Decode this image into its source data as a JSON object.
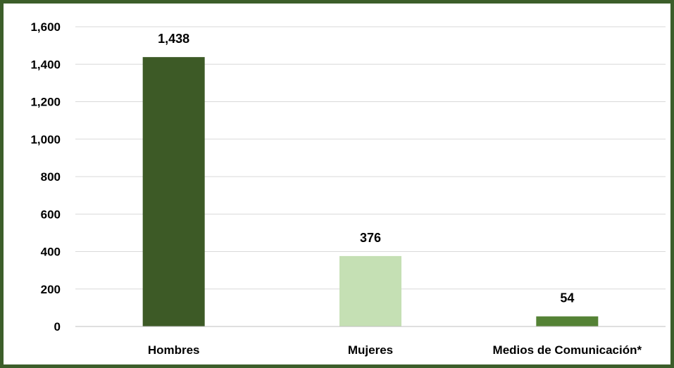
{
  "chart_data": {
    "type": "bar",
    "title": "",
    "xlabel": "",
    "ylabel": "",
    "categories": [
      "Hombres",
      "Mujeres",
      "Medios de Comunicación*"
    ],
    "values": [
      1438,
      376,
      54
    ],
    "data_labels": [
      "1,438",
      "376",
      "54"
    ],
    "bar_colors": [
      "#3d5a26",
      "#c5e0b4",
      "#548235"
    ],
    "ylim": [
      0,
      1600
    ],
    "yticks": [
      0,
      200,
      400,
      600,
      800,
      1000,
      1200,
      1400,
      1600
    ],
    "ytick_labels": [
      "0",
      "200",
      "400",
      "600",
      "800",
      "1,000",
      "1,200",
      "1,400",
      "1,600"
    ],
    "grid": true,
    "legend": "none",
    "frame_color": "#3c5e2a"
  }
}
